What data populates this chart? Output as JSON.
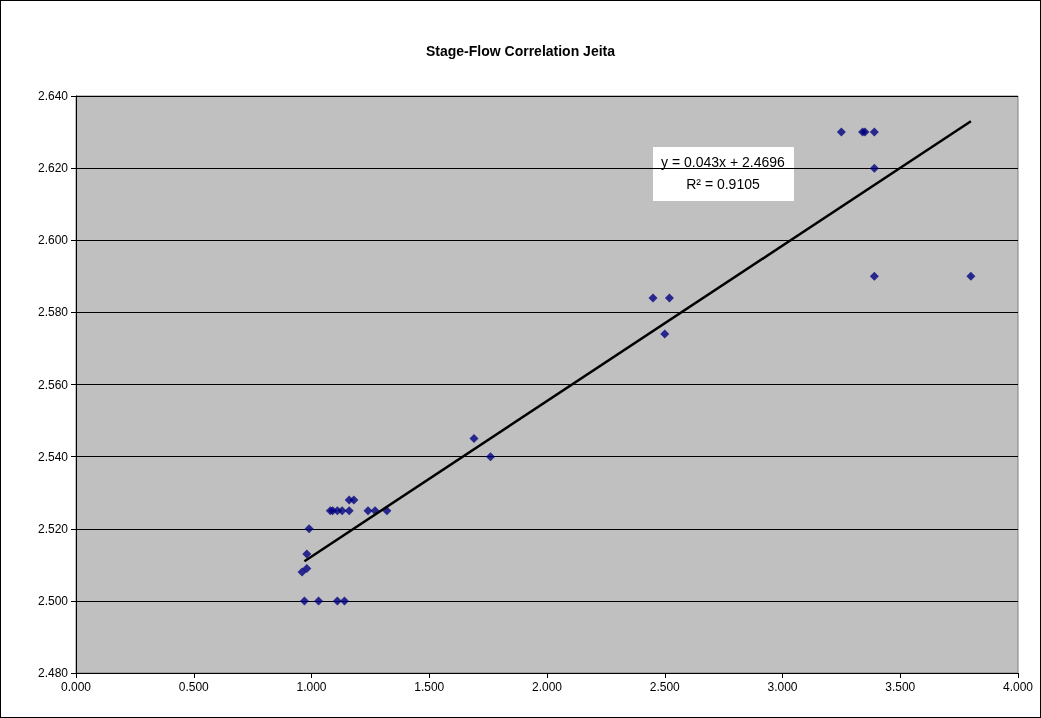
{
  "chart_data": {
    "type": "scatter",
    "title": "Stage-Flow Correlation Jeita",
    "grid": "y",
    "marker": "diamond",
    "xlim": [
      0,
      4
    ],
    "ylim": [
      2.48,
      2.64
    ],
    "xticks": [
      {
        "value": 0,
        "label": "0.000"
      },
      {
        "value": 0.5,
        "label": "0.500"
      },
      {
        "value": 1,
        "label": "1.000"
      },
      {
        "value": 1.5,
        "label": "1.500"
      },
      {
        "value": 2,
        "label": "2.000"
      },
      {
        "value": 2.5,
        "label": "2.500"
      },
      {
        "value": 3,
        "label": "3.000"
      },
      {
        "value": 3.5,
        "label": "3.500"
      },
      {
        "value": 4,
        "label": "4.000"
      }
    ],
    "yticks": [
      {
        "value": 2.48,
        "label": "2.480"
      },
      {
        "value": 2.5,
        "label": "2.500"
      },
      {
        "value": 2.52,
        "label": "2.520"
      },
      {
        "value": 2.54,
        "label": "2.540"
      },
      {
        "value": 2.56,
        "label": "2.560"
      },
      {
        "value": 2.58,
        "label": "2.580"
      },
      {
        "value": 2.6,
        "label": "2.600"
      },
      {
        "value": 2.62,
        "label": "2.620"
      },
      {
        "value": 2.64,
        "label": "2.640"
      }
    ],
    "annotations": [
      "y = 0.043x + 2.4696",
      "R² = 0.9105"
    ],
    "series": [
      {
        "color": "#000080",
        "x": [
          0.97,
          1.03,
          1.11,
          1.14,
          0.96,
          0.98,
          0.98,
          0.99,
          1.08,
          1.09,
          1.11,
          1.13,
          1.16,
          1.24,
          1.27,
          1.32,
          1.16,
          1.18,
          1.69,
          1.76,
          2.45,
          2.52,
          2.5,
          3.25,
          3.34,
          3.35,
          3.39,
          3.39,
          3.39,
          3.8
        ],
        "values": [
          2.5,
          2.5,
          2.5,
          2.5,
          2.508,
          2.509,
          2.513,
          2.52,
          2.525,
          2.525,
          2.525,
          2.525,
          2.525,
          2.525,
          2.525,
          2.525,
          2.528,
          2.528,
          2.545,
          2.54,
          2.584,
          2.584,
          2.574,
          2.63,
          2.63,
          2.63,
          2.63,
          2.62,
          2.59,
          2.59
        ]
      },
      {
        "type": "line",
        "color": "#000000",
        "marker": "none",
        "x": [
          0.97,
          3.8
        ],
        "values": [
          2.511,
          2.633
        ]
      }
    ]
  }
}
